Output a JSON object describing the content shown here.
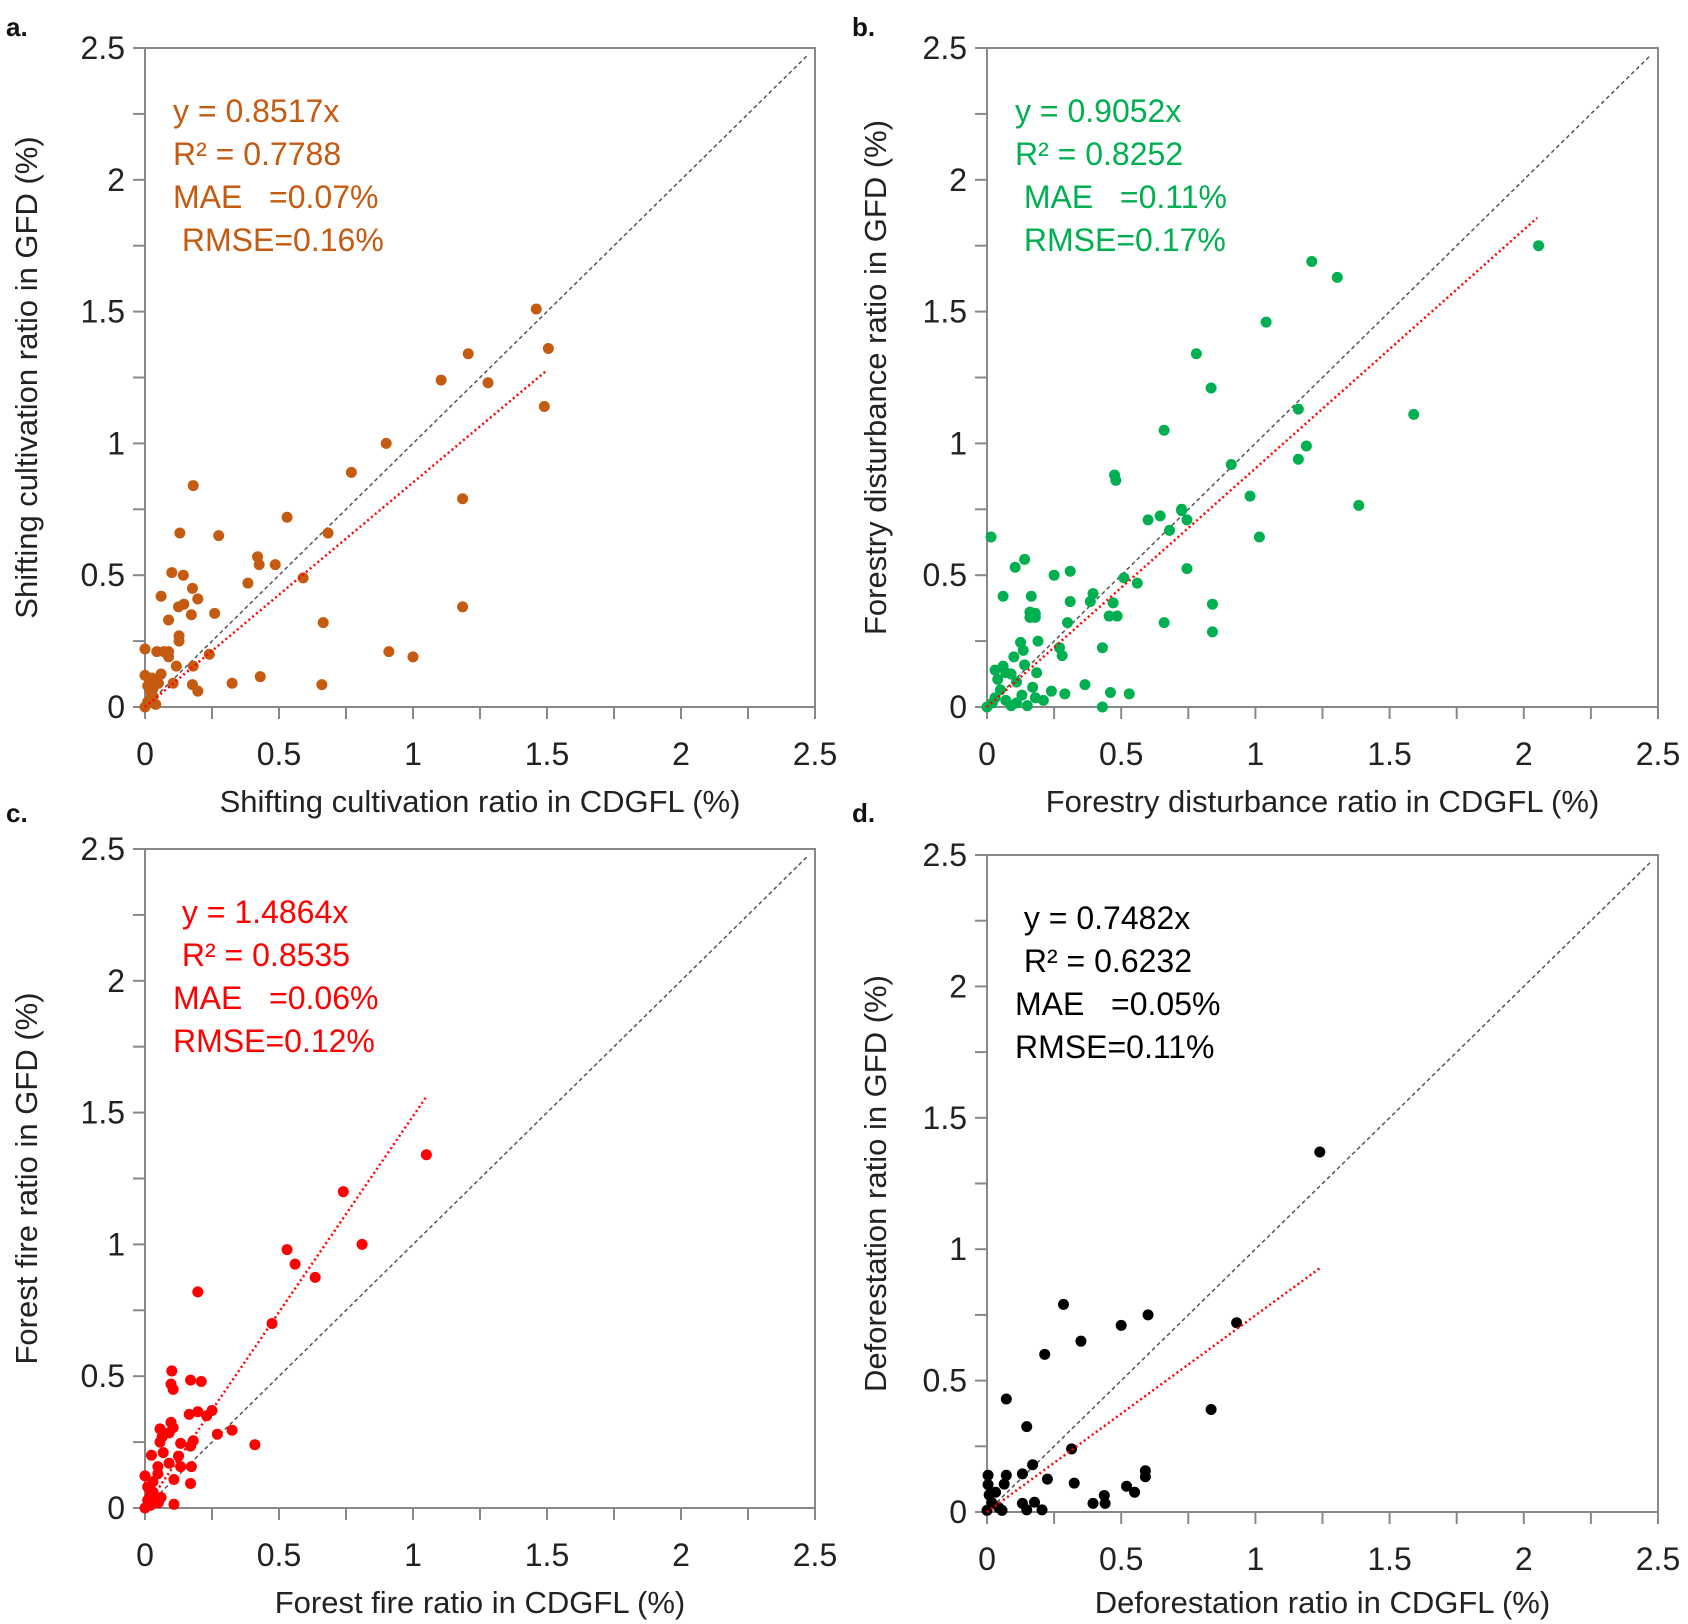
{
  "chart_data": [
    {
      "type": "scatter",
      "panel_label": "a.",
      "xlabel": "Shifting cultivation ratio in CDGFL (%)",
      "ylabel": "Shifting cultivation ratio in GFD (%)",
      "xlim": [
        0,
        2.5
      ],
      "ylim": [
        0,
        2.5
      ],
      "xticks": [
        "0",
        "0.5",
        "1",
        "1.5",
        "2",
        "2.5"
      ],
      "yticks": [
        "0",
        "0.5",
        "1",
        "1.5",
        "2",
        "2.5"
      ],
      "color": "#C55A11",
      "fit_slope": 0.8517,
      "fit_x_max": 1.5,
      "annotations": [
        "y = 0.8517x",
        "R² = 0.7788",
        "MAE   =0.07%",
        " RMSE=0.16%"
      ],
      "points": [
        [
          1.46,
          1.51
        ],
        [
          1.505,
          1.36
        ],
        [
          1.206,
          1.34
        ],
        [
          1.105,
          1.24
        ],
        [
          1.28,
          1.23
        ],
        [
          1.49,
          1.14
        ],
        [
          0.9,
          1.0
        ],
        [
          0.77,
          0.89
        ],
        [
          1.185,
          0.79
        ],
        [
          0.18,
          0.84
        ],
        [
          0.53,
          0.72
        ],
        [
          0.13,
          0.66
        ],
        [
          0.275,
          0.65
        ],
        [
          0.683,
          0.66
        ],
        [
          0.42,
          0.57
        ],
        [
          0.426,
          0.54
        ],
        [
          0.486,
          0.54
        ],
        [
          0.59,
          0.49
        ],
        [
          0.384,
          0.47
        ],
        [
          0.1,
          0.51
        ],
        [
          0.143,
          0.5
        ],
        [
          0.177,
          0.45
        ],
        [
          0.06,
          0.42
        ],
        [
          0.197,
          0.41
        ],
        [
          0.125,
          0.38
        ],
        [
          0.145,
          0.39
        ],
        [
          0.173,
          0.35
        ],
        [
          0.26,
          0.355
        ],
        [
          0.088,
          0.33
        ],
        [
          0.665,
          0.32
        ],
        [
          1.185,
          0.38
        ],
        [
          0.127,
          0.27
        ],
        [
          0.127,
          0.25
        ],
        [
          0,
          0.22
        ],
        [
          0.044,
          0.21
        ],
        [
          0.088,
          0.21
        ],
        [
          0.088,
          0.19
        ],
        [
          0.07,
          0.21
        ],
        [
          0.24,
          0.2
        ],
        [
          0.91,
          0.21
        ],
        [
          1.0,
          0.19
        ],
        [
          0.18,
          0.155
        ],
        [
          0.117,
          0.155
        ],
        [
          0.06,
          0.125
        ],
        [
          0,
          0.12
        ],
        [
          0.43,
          0.115
        ],
        [
          0.325,
          0.09
        ],
        [
          0.105,
          0.09
        ],
        [
          0.177,
          0.085
        ],
        [
          0.197,
          0.06
        ],
        [
          0.66,
          0.085
        ],
        [
          0.025,
          0.11
        ],
        [
          0.01,
          0.08
        ],
        [
          0.02,
          0.06
        ],
        [
          0.03,
          0.04
        ],
        [
          0.01,
          0.02
        ],
        [
          0,
          0
        ],
        [
          0.04,
          0.01
        ],
        [
          0.02,
          0.03
        ],
        [
          0.03,
          0.07
        ],
        [
          0.05,
          0.09
        ]
      ]
    },
    {
      "type": "scatter",
      "panel_label": "b.",
      "xlabel": "Forestry disturbance ratio in CDGFL (%)",
      "ylabel": "Forestry disturbance ratio in GFD (%)",
      "xlim": [
        0,
        2.5
      ],
      "ylim": [
        0,
        2.5
      ],
      "xticks": [
        "0",
        "0.5",
        "1",
        "1.5",
        "2",
        "2.5"
      ],
      "yticks": [
        "0",
        "0.5",
        "1",
        "1.5",
        "2",
        "2.5"
      ],
      "color": "#00B050",
      "fit_slope": 0.9052,
      "fit_x_max": 2.05,
      "annotations": [
        "y = 0.9052x",
        "R² = 0.8252",
        " MAE   =0.11%",
        " RMSE=0.17%"
      ],
      "points": [
        [
          2.055,
          1.75
        ],
        [
          1.21,
          1.69
        ],
        [
          1.305,
          1.63
        ],
        [
          1.04,
          1.46
        ],
        [
          0.78,
          1.34
        ],
        [
          0.835,
          1.21
        ],
        [
          1.16,
          1.13
        ],
        [
          1.59,
          1.11
        ],
        [
          0.66,
          1.05
        ],
        [
          1.19,
          0.99
        ],
        [
          1.16,
          0.94
        ],
        [
          0.91,
          0.92
        ],
        [
          0.475,
          0.88
        ],
        [
          0.48,
          0.86
        ],
        [
          0.98,
          0.8
        ],
        [
          0.725,
          0.75
        ],
        [
          1.385,
          0.765
        ],
        [
          0.725,
          0.745
        ],
        [
          0.645,
          0.725
        ],
        [
          0.6,
          0.71
        ],
        [
          0.745,
          0.71
        ],
        [
          0.68,
          0.67
        ],
        [
          1.015,
          0.645
        ],
        [
          0.015,
          0.645
        ],
        [
          0.14,
          0.56
        ],
        [
          0.105,
          0.53
        ],
        [
          0.745,
          0.525
        ],
        [
          0.25,
          0.5
        ],
        [
          0.31,
          0.515
        ],
        [
          0.51,
          0.49
        ],
        [
          0.56,
          0.47
        ],
        [
          0.06,
          0.42
        ],
        [
          0.165,
          0.42
        ],
        [
          0.395,
          0.43
        ],
        [
          0.385,
          0.4
        ],
        [
          0.31,
          0.4
        ],
        [
          0.47,
          0.395
        ],
        [
          0.84,
          0.39
        ],
        [
          0.16,
          0.36
        ],
        [
          0.18,
          0.355
        ],
        [
          0.455,
          0.345
        ],
        [
          0.485,
          0.345
        ],
        [
          0.16,
          0.34
        ],
        [
          0.18,
          0.34
        ],
        [
          0.3,
          0.32
        ],
        [
          0.66,
          0.32
        ],
        [
          0.84,
          0.285
        ],
        [
          0.19,
          0.25
        ],
        [
          0.125,
          0.245
        ],
        [
          0.27,
          0.225
        ],
        [
          0.135,
          0.215
        ],
        [
          0.43,
          0.225
        ],
        [
          0.28,
          0.195
        ],
        [
          0.1,
          0.19
        ],
        [
          0.06,
          0.155
        ],
        [
          0.03,
          0.14
        ],
        [
          0.14,
          0.16
        ],
        [
          0.185,
          0.13
        ],
        [
          0.07,
          0.13
        ],
        [
          0.09,
          0.125
        ],
        [
          0.365,
          0.085
        ],
        [
          0.29,
          0.05
        ],
        [
          0.46,
          0.055
        ],
        [
          0.53,
          0.05
        ],
        [
          0.43,
          0.0
        ],
        [
          0.24,
          0.06
        ],
        [
          0.21,
          0.025
        ],
        [
          0.17,
          0.075
        ],
        [
          0.05,
          0.065
        ],
        [
          0.03,
          0.035
        ],
        [
          0.07,
          0.025
        ],
        [
          0.11,
          0.015
        ],
        [
          0.13,
          0.045
        ],
        [
          0,
          0
        ],
        [
          0.02,
          0.015
        ],
        [
          0.09,
          0.005
        ],
        [
          0.15,
          0.005
        ],
        [
          0.18,
          0.035
        ],
        [
          0.04,
          0.105
        ],
        [
          0.11,
          0.095
        ]
      ]
    },
    {
      "type": "scatter",
      "panel_label": "c.",
      "xlabel": "Forest fire ratio in CDGFL (%)",
      "ylabel": "Forest fire ratio in GFD (%)",
      "xlim": [
        0,
        2.5
      ],
      "ylim": [
        0,
        2.5
      ],
      "xticks": [
        "0",
        "0.5",
        "1",
        "1.5",
        "2",
        "2.5"
      ],
      "yticks": [
        "0",
        "0.5",
        "1",
        "1.5",
        "2",
        "2.5"
      ],
      "color": "#FF0000",
      "fit_slope": 1.4864,
      "fit_x_max": 1.05,
      "annotations": [
        " y = 1.4864x",
        " R² = 0.8535",
        "MAE   =0.06%",
        "RMSE=0.12%"
      ],
      "points": [
        [
          1.05,
          1.34
        ],
        [
          0.74,
          1.2
        ],
        [
          0.81,
          1.0
        ],
        [
          0.53,
          0.98
        ],
        [
          0.56,
          0.925
        ],
        [
          0.635,
          0.875
        ],
        [
          0.197,
          0.82
        ],
        [
          0.474,
          0.7
        ],
        [
          0.1,
          0.52
        ],
        [
          0.097,
          0.47
        ],
        [
          0.105,
          0.45
        ],
        [
          0.17,
          0.485
        ],
        [
          0.21,
          0.48
        ],
        [
          0.165,
          0.355
        ],
        [
          0.197,
          0.365
        ],
        [
          0.25,
          0.37
        ],
        [
          0.23,
          0.35
        ],
        [
          0.097,
          0.325
        ],
        [
          0.105,
          0.305
        ],
        [
          0.056,
          0.3
        ],
        [
          0.325,
          0.295
        ],
        [
          0.27,
          0.28
        ],
        [
          0.09,
          0.285
        ],
        [
          0.064,
          0.27
        ],
        [
          0.056,
          0.25
        ],
        [
          0.133,
          0.245
        ],
        [
          0.18,
          0.255
        ],
        [
          0.17,
          0.235
        ],
        [
          0.41,
          0.24
        ],
        [
          0.068,
          0.21
        ],
        [
          0.024,
          0.2
        ],
        [
          0.125,
          0.197
        ],
        [
          0.09,
          0.17
        ],
        [
          0.133,
          0.157
        ],
        [
          0.173,
          0.157
        ],
        [
          0.048,
          0.157
        ],
        [
          0.048,
          0.13
        ],
        [
          0,
          0.122
        ],
        [
          0.108,
          0.108
        ],
        [
          0.17,
          0.093
        ],
        [
          0.108,
          0.014
        ],
        [
          0.01,
          0.08
        ],
        [
          0.02,
          0.05
        ],
        [
          0.03,
          0.1
        ],
        [
          0.04,
          0.03
        ],
        [
          0.02,
          0.01
        ],
        [
          0,
          0
        ],
        [
          0.05,
          0.02
        ],
        [
          0.03,
          0.06
        ],
        [
          0.01,
          0.03
        ],
        [
          0.06,
          0.04
        ]
      ]
    },
    {
      "type": "scatter",
      "panel_label": "d.",
      "xlabel": "Deforestation ratio in CDGFL (%)",
      "ylabel": "Deforestation ratio in GFD (%)",
      "xlim": [
        0,
        2.5
      ],
      "ylim": [
        0,
        2.5
      ],
      "xticks": [
        "0",
        "0.5",
        "1",
        "1.5",
        "2",
        "2.5"
      ],
      "yticks": [
        "0",
        "0.5",
        "1",
        "1.5",
        "2",
        "2.5"
      ],
      "color": "#000000",
      "fit_slope": 0.7482,
      "fit_x_max": 1.24,
      "annotations": [
        " y = 0.7482x",
        " R² = 0.6232",
        "MAE   =0.05%",
        "RMSE=0.11%"
      ],
      "points": [
        [
          1.24,
          1.37
        ],
        [
          0.285,
          0.79
        ],
        [
          0.6,
          0.75
        ],
        [
          0.5,
          0.71
        ],
        [
          0.93,
          0.72
        ],
        [
          0.35,
          0.65
        ],
        [
          0.215,
          0.6
        ],
        [
          0.072,
          0.43
        ],
        [
          0.835,
          0.39
        ],
        [
          0.148,
          0.325
        ],
        [
          0.315,
          0.24
        ],
        [
          0.17,
          0.18
        ],
        [
          0.225,
          0.125
        ],
        [
          0.132,
          0.145
        ],
        [
          0.072,
          0.14
        ],
        [
          0.004,
          0.14
        ],
        [
          0.59,
          0.157
        ],
        [
          0.59,
          0.134
        ],
        [
          0.325,
          0.11
        ],
        [
          0.064,
          0.106
        ],
        [
          0.52,
          0.098
        ],
        [
          0.55,
          0.075
        ],
        [
          0.032,
          0.075
        ],
        [
          0.437,
          0.063
        ],
        [
          0.44,
          0.033
        ],
        [
          0.395,
          0.033
        ],
        [
          0.132,
          0.033
        ],
        [
          0.177,
          0.037
        ],
        [
          0.148,
          0.008
        ],
        [
          0.205,
          0.008
        ],
        [
          0.056,
          0.006
        ],
        [
          0.044,
          0.016
        ],
        [
          0.004,
          0.104
        ],
        [
          0.008,
          0.065
        ],
        [
          0,
          0.006
        ],
        [
          0.018,
          0.035
        ]
      ]
    }
  ],
  "style": {
    "fit_line_color": "#FF0000",
    "identity_line_color": "#555555",
    "frame_color": "#888888"
  }
}
